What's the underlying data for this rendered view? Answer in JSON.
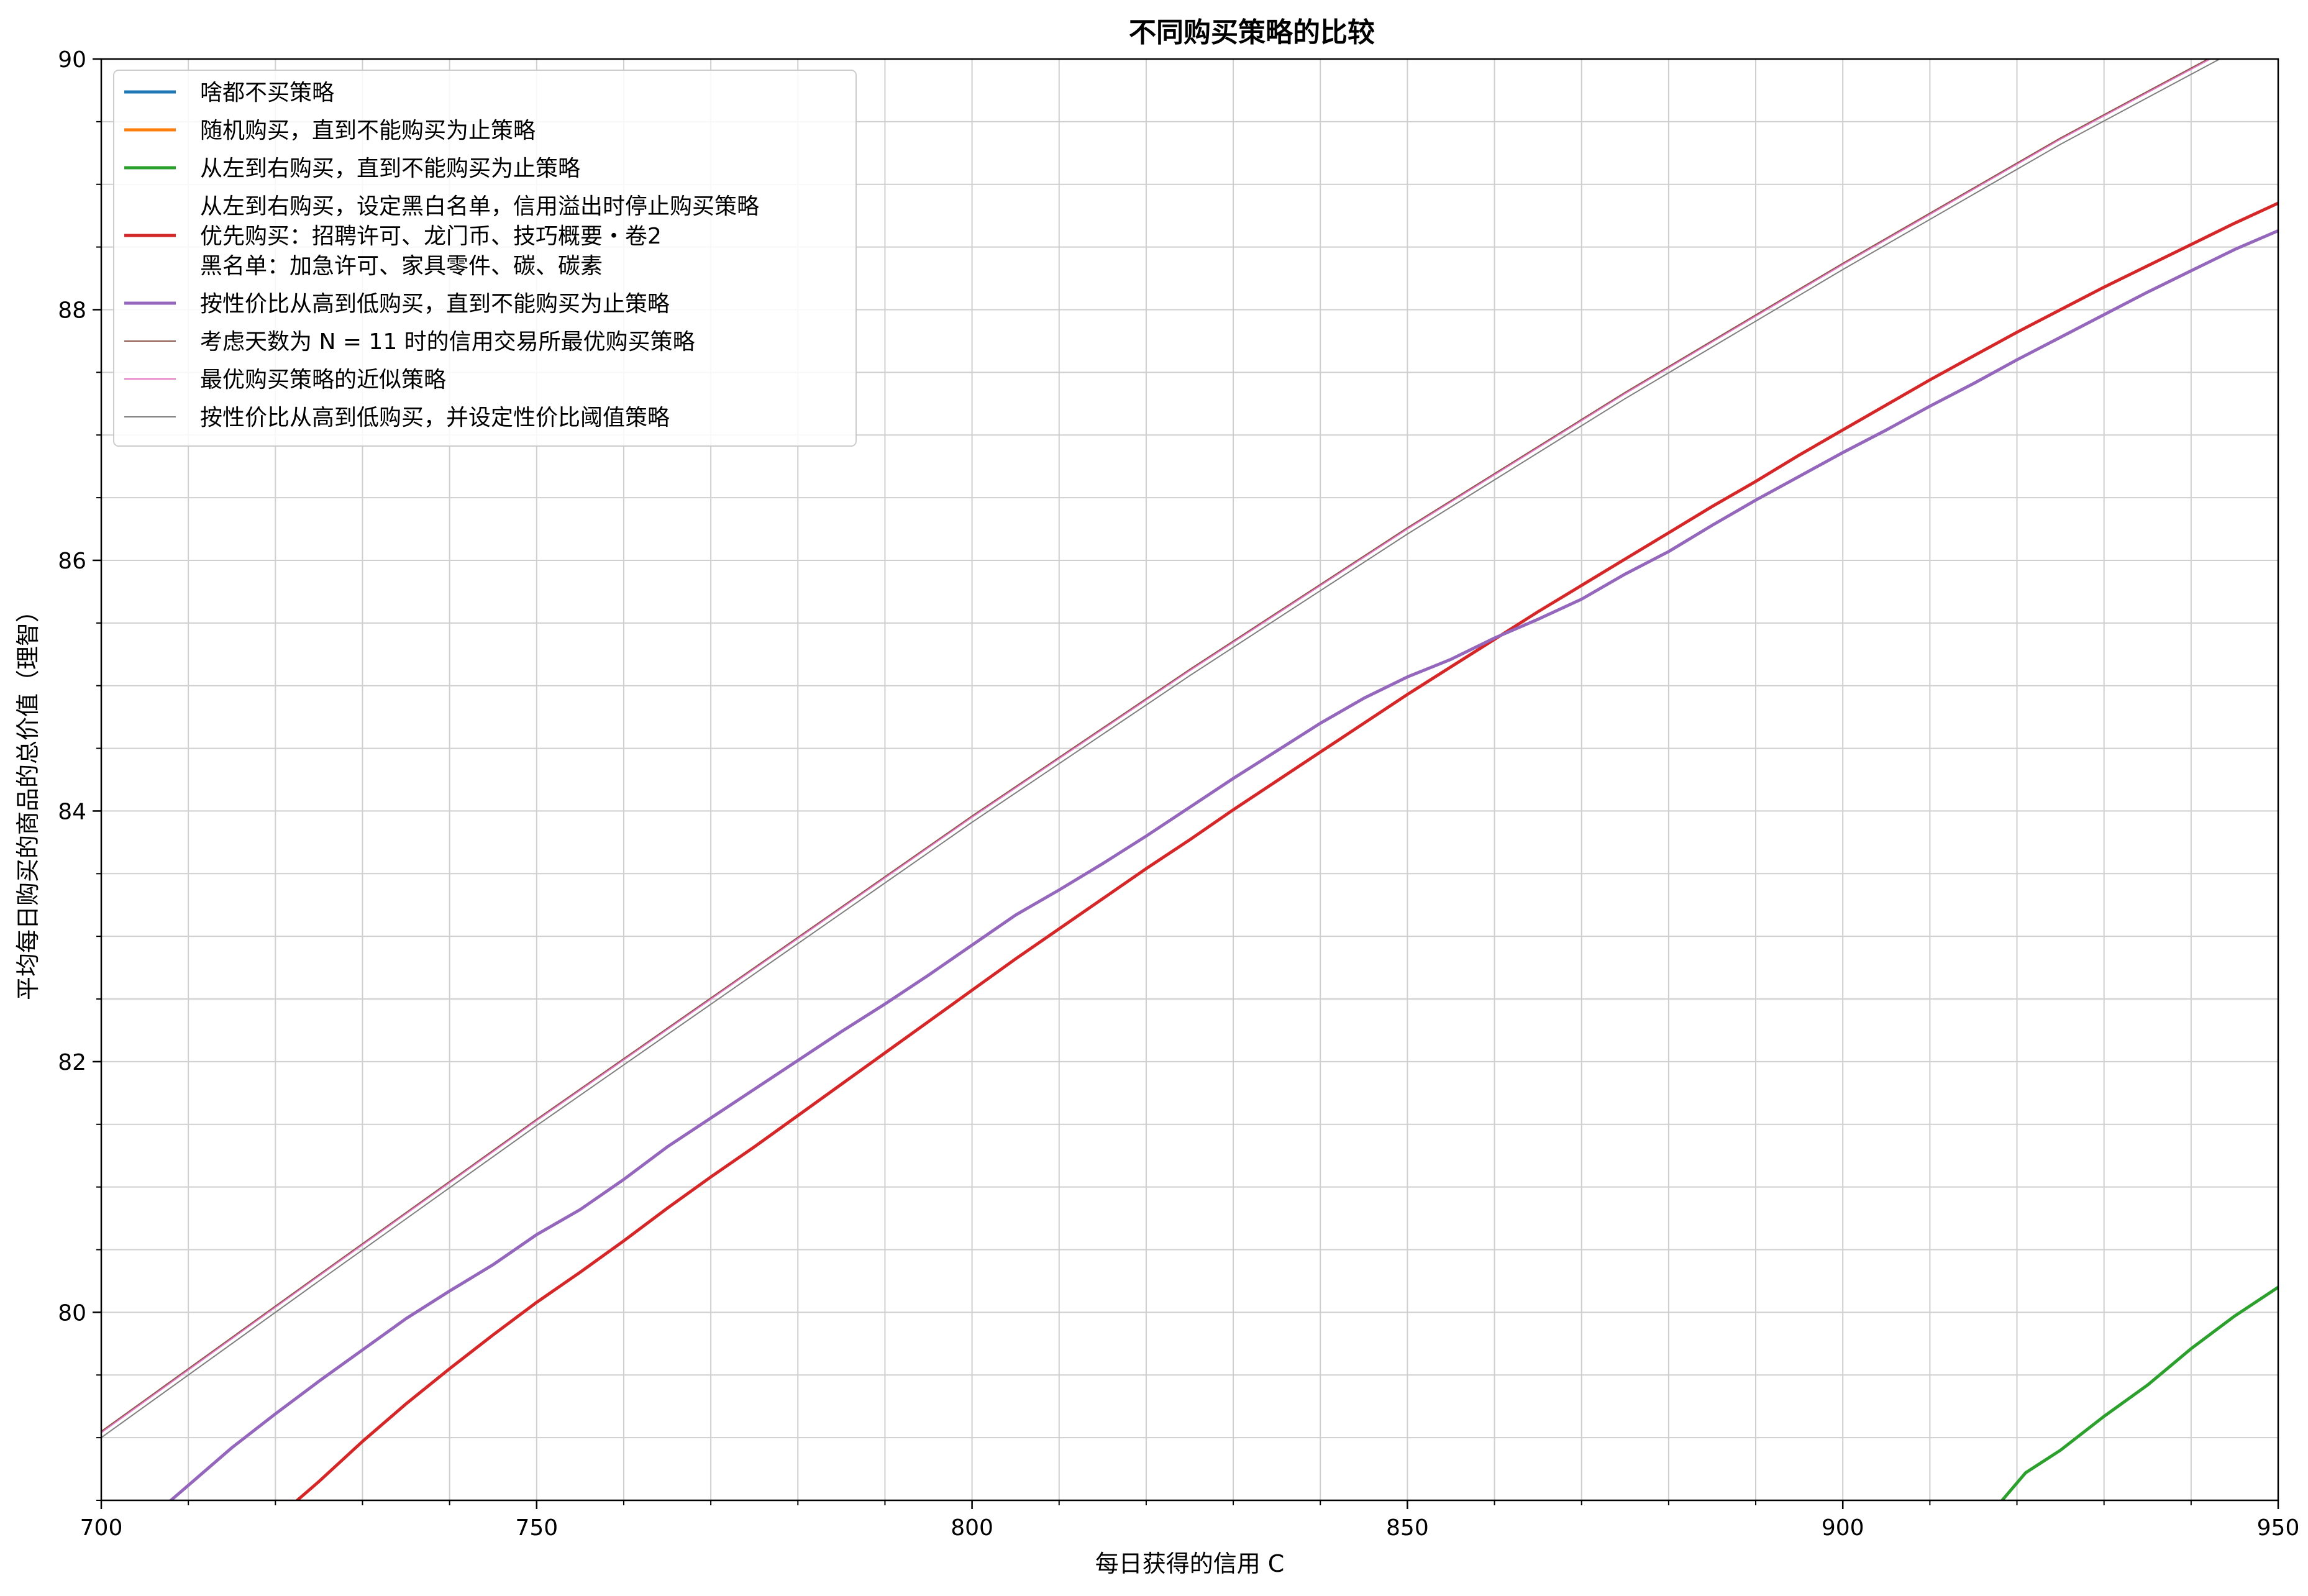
{
  "chart_data": {
    "type": "line",
    "title": "不同购买策略的比较",
    "xlabel": "每日获得的信用 C",
    "ylabel": "平均每日购买的商品的总价值（理智）",
    "xlim": [
      700,
      950
    ],
    "ylim": [
      78.5,
      90
    ],
    "x_ticks": [
      700,
      750,
      800,
      850,
      900,
      950
    ],
    "y_ticks": [
      80,
      82,
      84,
      86,
      88,
      90
    ],
    "x_minor_step": 10,
    "y_minor_step": 0.5,
    "grid": true,
    "legend_position": "top-left",
    "series": [
      {
        "name": "啥都不买策略",
        "color": "#1f77b4",
        "width": "thick",
        "points": []
      },
      {
        "name": "随机购买，直到不能购买为止策略",
        "color": "#ff7f0e",
        "width": "thick",
        "points": []
      },
      {
        "name": "从左到右购买，直到不能购买为止策略",
        "color": "#2ca02c",
        "width": "thick",
        "points": [
          [
            918.3,
            78.5
          ],
          [
            921,
            78.72
          ],
          [
            925,
            78.9
          ],
          [
            930,
            79.17
          ],
          [
            935,
            79.42
          ],
          [
            940,
            79.71
          ],
          [
            945,
            79.97
          ],
          [
            950,
            80.2
          ]
        ]
      },
      {
        "name": "从左到右购买，设定黑白名单，信用溢出时停止购买策略\n优先购买：招聘许可、龙门币、技巧概要・卷2\n黑名单：加急许可、家具零件、碳、碳素",
        "color": "#d62728",
        "width": "thick",
        "points": [
          [
            722.5,
            78.5
          ],
          [
            725,
            78.65
          ],
          [
            730,
            78.97
          ],
          [
            735,
            79.27
          ],
          [
            740,
            79.55
          ],
          [
            745,
            79.82
          ],
          [
            750,
            80.08
          ],
          [
            755,
            80.32
          ],
          [
            760,
            80.57
          ],
          [
            765,
            80.83
          ],
          [
            770,
            81.08
          ],
          [
            775,
            81.32
          ],
          [
            780,
            81.57
          ],
          [
            785,
            81.82
          ],
          [
            790,
            82.07
          ],
          [
            795,
            82.32
          ],
          [
            800,
            82.57
          ],
          [
            805,
            82.82
          ],
          [
            810,
            83.06
          ],
          [
            815,
            83.3
          ],
          [
            820,
            83.54
          ],
          [
            825,
            83.77
          ],
          [
            830,
            84.01
          ],
          [
            835,
            84.24
          ],
          [
            840,
            84.47
          ],
          [
            845,
            84.7
          ],
          [
            850,
            84.93
          ],
          [
            855,
            85.15
          ],
          [
            860,
            85.37
          ],
          [
            865,
            85.59
          ],
          [
            870,
            85.8
          ],
          [
            875,
            86.01
          ],
          [
            880,
            86.22
          ],
          [
            885,
            86.43
          ],
          [
            890,
            86.63
          ],
          [
            895,
            86.84
          ],
          [
            900,
            87.04
          ],
          [
            905,
            87.24
          ],
          [
            910,
            87.44
          ],
          [
            915,
            87.63
          ],
          [
            920,
            87.82
          ],
          [
            925,
            88.0
          ],
          [
            930,
            88.18
          ],
          [
            935,
            88.35
          ],
          [
            940,
            88.52
          ],
          [
            945,
            88.69
          ],
          [
            950,
            88.85
          ]
        ]
      },
      {
        "name": "按性价比从高到低购买，直到不能购买为止策略",
        "color": "#9467bd",
        "width": "thick",
        "points": [
          [
            708,
            78.5
          ],
          [
            710,
            78.62
          ],
          [
            715,
            78.92
          ],
          [
            720,
            79.19
          ],
          [
            725,
            79.45
          ],
          [
            730,
            79.7
          ],
          [
            735,
            79.95
          ],
          [
            740,
            80.17
          ],
          [
            745,
            80.38
          ],
          [
            750,
            80.62
          ],
          [
            755,
            80.82
          ],
          [
            760,
            81.06
          ],
          [
            765,
            81.32
          ],
          [
            770,
            81.55
          ],
          [
            775,
            81.78
          ],
          [
            780,
            82.01
          ],
          [
            785,
            82.24
          ],
          [
            790,
            82.46
          ],
          [
            795,
            82.69
          ],
          [
            800,
            82.93
          ],
          [
            805,
            83.17
          ],
          [
            810,
            83.37
          ],
          [
            815,
            83.58
          ],
          [
            820,
            83.8
          ],
          [
            825,
            84.03
          ],
          [
            830,
            84.26
          ],
          [
            835,
            84.48
          ],
          [
            840,
            84.7
          ],
          [
            845,
            84.9
          ],
          [
            850,
            85.07
          ],
          [
            855,
            85.21
          ],
          [
            860,
            85.38
          ],
          [
            865,
            85.53
          ],
          [
            870,
            85.69
          ],
          [
            875,
            85.89
          ],
          [
            880,
            86.07
          ],
          [
            885,
            86.28
          ],
          [
            890,
            86.48
          ],
          [
            895,
            86.67
          ],
          [
            900,
            86.86
          ],
          [
            905,
            87.04
          ],
          [
            910,
            87.23
          ],
          [
            915,
            87.41
          ],
          [
            920,
            87.6
          ],
          [
            925,
            87.78
          ],
          [
            930,
            87.96
          ],
          [
            935,
            88.14
          ],
          [
            940,
            88.31
          ],
          [
            945,
            88.48
          ],
          [
            950,
            88.63
          ]
        ]
      },
      {
        "name": "考虑天数为 N = 11 时的信用交易所最优购买策略",
        "color": "#8c564b",
        "width": "thin",
        "points": [
          [
            700,
            79.05
          ],
          [
            725,
            80.3
          ],
          [
            750,
            81.54
          ],
          [
            775,
            82.75
          ],
          [
            800,
            83.96
          ],
          [
            825,
            85.13
          ],
          [
            850,
            86.26
          ],
          [
            875,
            87.34
          ],
          [
            900,
            88.37
          ],
          [
            925,
            89.37
          ],
          [
            950,
            90.3
          ]
        ]
      },
      {
        "name": "最优购买策略的近似策略",
        "color": "#e377c2",
        "width": "thin",
        "points": [
          [
            700,
            79.04
          ],
          [
            725,
            80.29
          ],
          [
            750,
            81.53
          ],
          [
            775,
            82.74
          ],
          [
            800,
            83.95
          ],
          [
            825,
            85.12
          ],
          [
            850,
            86.25
          ],
          [
            875,
            87.33
          ],
          [
            900,
            88.36
          ],
          [
            925,
            89.36
          ],
          [
            950,
            90.29
          ]
        ]
      },
      {
        "name": "按性价比从高到低购买，并设定性价比阈值策略",
        "color": "#7f7f7f",
        "width": "thin",
        "points": [
          [
            700,
            79.0
          ],
          [
            725,
            80.25
          ],
          [
            750,
            81.49
          ],
          [
            775,
            82.7
          ],
          [
            800,
            83.91
          ],
          [
            825,
            85.08
          ],
          [
            850,
            86.21
          ],
          [
            875,
            87.29
          ],
          [
            900,
            88.32
          ],
          [
            925,
            89.32
          ],
          [
            950,
            90.25
          ]
        ]
      }
    ]
  }
}
